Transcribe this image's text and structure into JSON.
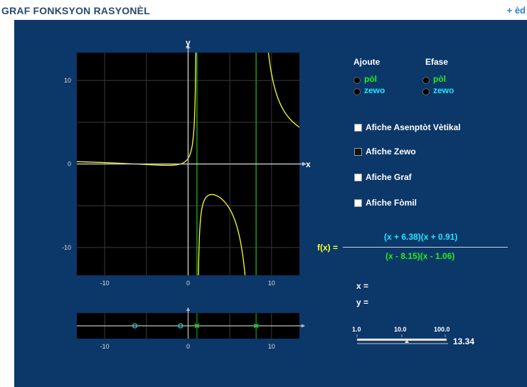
{
  "header": {
    "title": "GRAF FONKSYON RASYONÈL",
    "help_link": "+ èd"
  },
  "controls": {
    "add_heading": "Ajoute",
    "remove_heading": "Efase",
    "pole_label": "pòl",
    "zero_label": "zewo",
    "checkboxes": [
      {
        "label": "Afiche Asenptòt Vètikal",
        "checked": true
      },
      {
        "label": "Afiche Zewo",
        "checked": false
      },
      {
        "label": "Afiche Graf",
        "checked": true
      },
      {
        "label": "Afiche Fòmil",
        "checked": true
      }
    ]
  },
  "formula": {
    "lhs": "f(x) =",
    "numerator": "(x + 6.38)(x + 0.91)",
    "denominator": "(x - 8.15)(x - 1.06)"
  },
  "readout": {
    "x_label": "x =",
    "y_label": "y =",
    "x_value": "",
    "y_value": ""
  },
  "slider": {
    "tick_labels": [
      "1.0",
      "10.0",
      "100.0"
    ],
    "value": "13.34",
    "scale": "log"
  },
  "chart_data": {
    "type": "line",
    "x_axis_label": "x",
    "y_axis_label": "y",
    "xlim": [
      -13.34,
      13.34
    ],
    "ylim": [
      -13.34,
      13.34
    ],
    "x_ticks": [
      -10,
      0,
      10
    ],
    "y_ticks": [
      10,
      0,
      -10
    ],
    "grid": true,
    "function": {
      "zeros": [
        -6.38,
        -0.91
      ],
      "poles": [
        8.15,
        1.06
      ],
      "leading_coefficient": 1
    },
    "colors": {
      "curve": "#ffff33",
      "asymptote": "#1b9a1b",
      "zero_marker": "#22c8d8",
      "pole_marker": "#22cc22",
      "grid": "#3a3a3a",
      "axis": "#c0c0c0"
    }
  }
}
